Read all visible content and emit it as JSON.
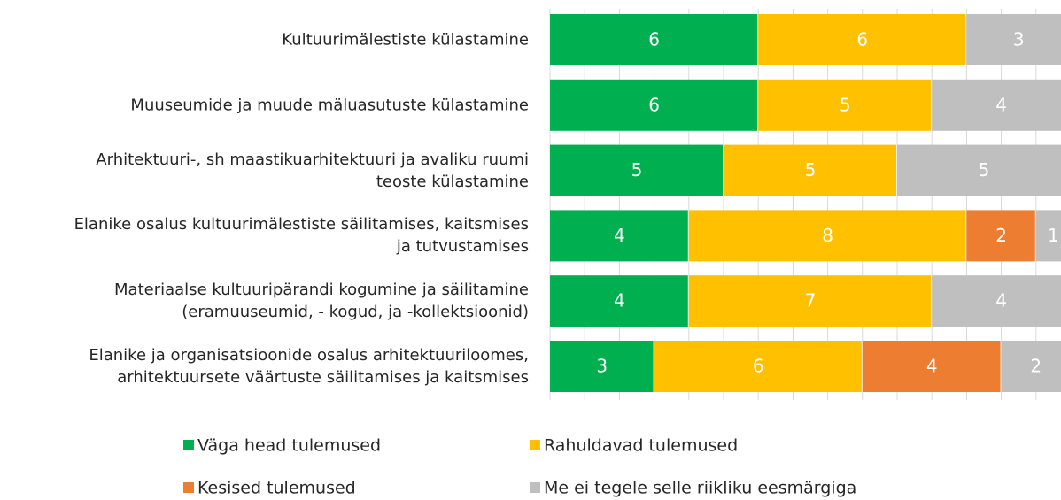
{
  "chart_data": {
    "type": "stacked_barh",
    "categories": [
      "Kultuurimälestiste külastamine",
      "Muuseumide ja muude mäluasutuste külastamine",
      "Arhitektuuri-, sh maastikuarhitektuuri ja avaliku ruumi\nteoste külastamine",
      "Elanike osalus kultuurimälestiste säilitamises, kaitsmises\nja tutvustamises",
      "Materiaalse kultuuripärandi kogumine ja säilitamine\n(eramuuseumid, - kogud, ja -kollektsioonid)",
      "Elanike ja organisatsioonide osalus arhitektuuriloomes,\narhitektuursete väärtuste säilitamises ja kaitsmises"
    ],
    "series": [
      {
        "name": "Väga head tulemused",
        "color": "#00b050",
        "values": [
          6,
          6,
          5,
          4,
          4,
          3
        ]
      },
      {
        "name": "Rahuldavad tulemused",
        "color": "#ffc000",
        "values": [
          6,
          5,
          5,
          8,
          7,
          6
        ]
      },
      {
        "name": "Kesised tulemused",
        "color": "#ed7d31",
        "values": [
          null,
          null,
          null,
          2,
          null,
          4
        ]
      },
      {
        "name": "Me ei tegele selle riikliku eesmärgiga",
        "color": "#bfbfbf",
        "values": [
          3,
          4,
          5,
          1,
          4,
          2
        ]
      }
    ],
    "xlim": [
      0,
      15
    ],
    "xticks": [
      0,
      1,
      2,
      3,
      4,
      5,
      6,
      7,
      8,
      9,
      10,
      11,
      12,
      13,
      14,
      15
    ],
    "grid": true
  }
}
